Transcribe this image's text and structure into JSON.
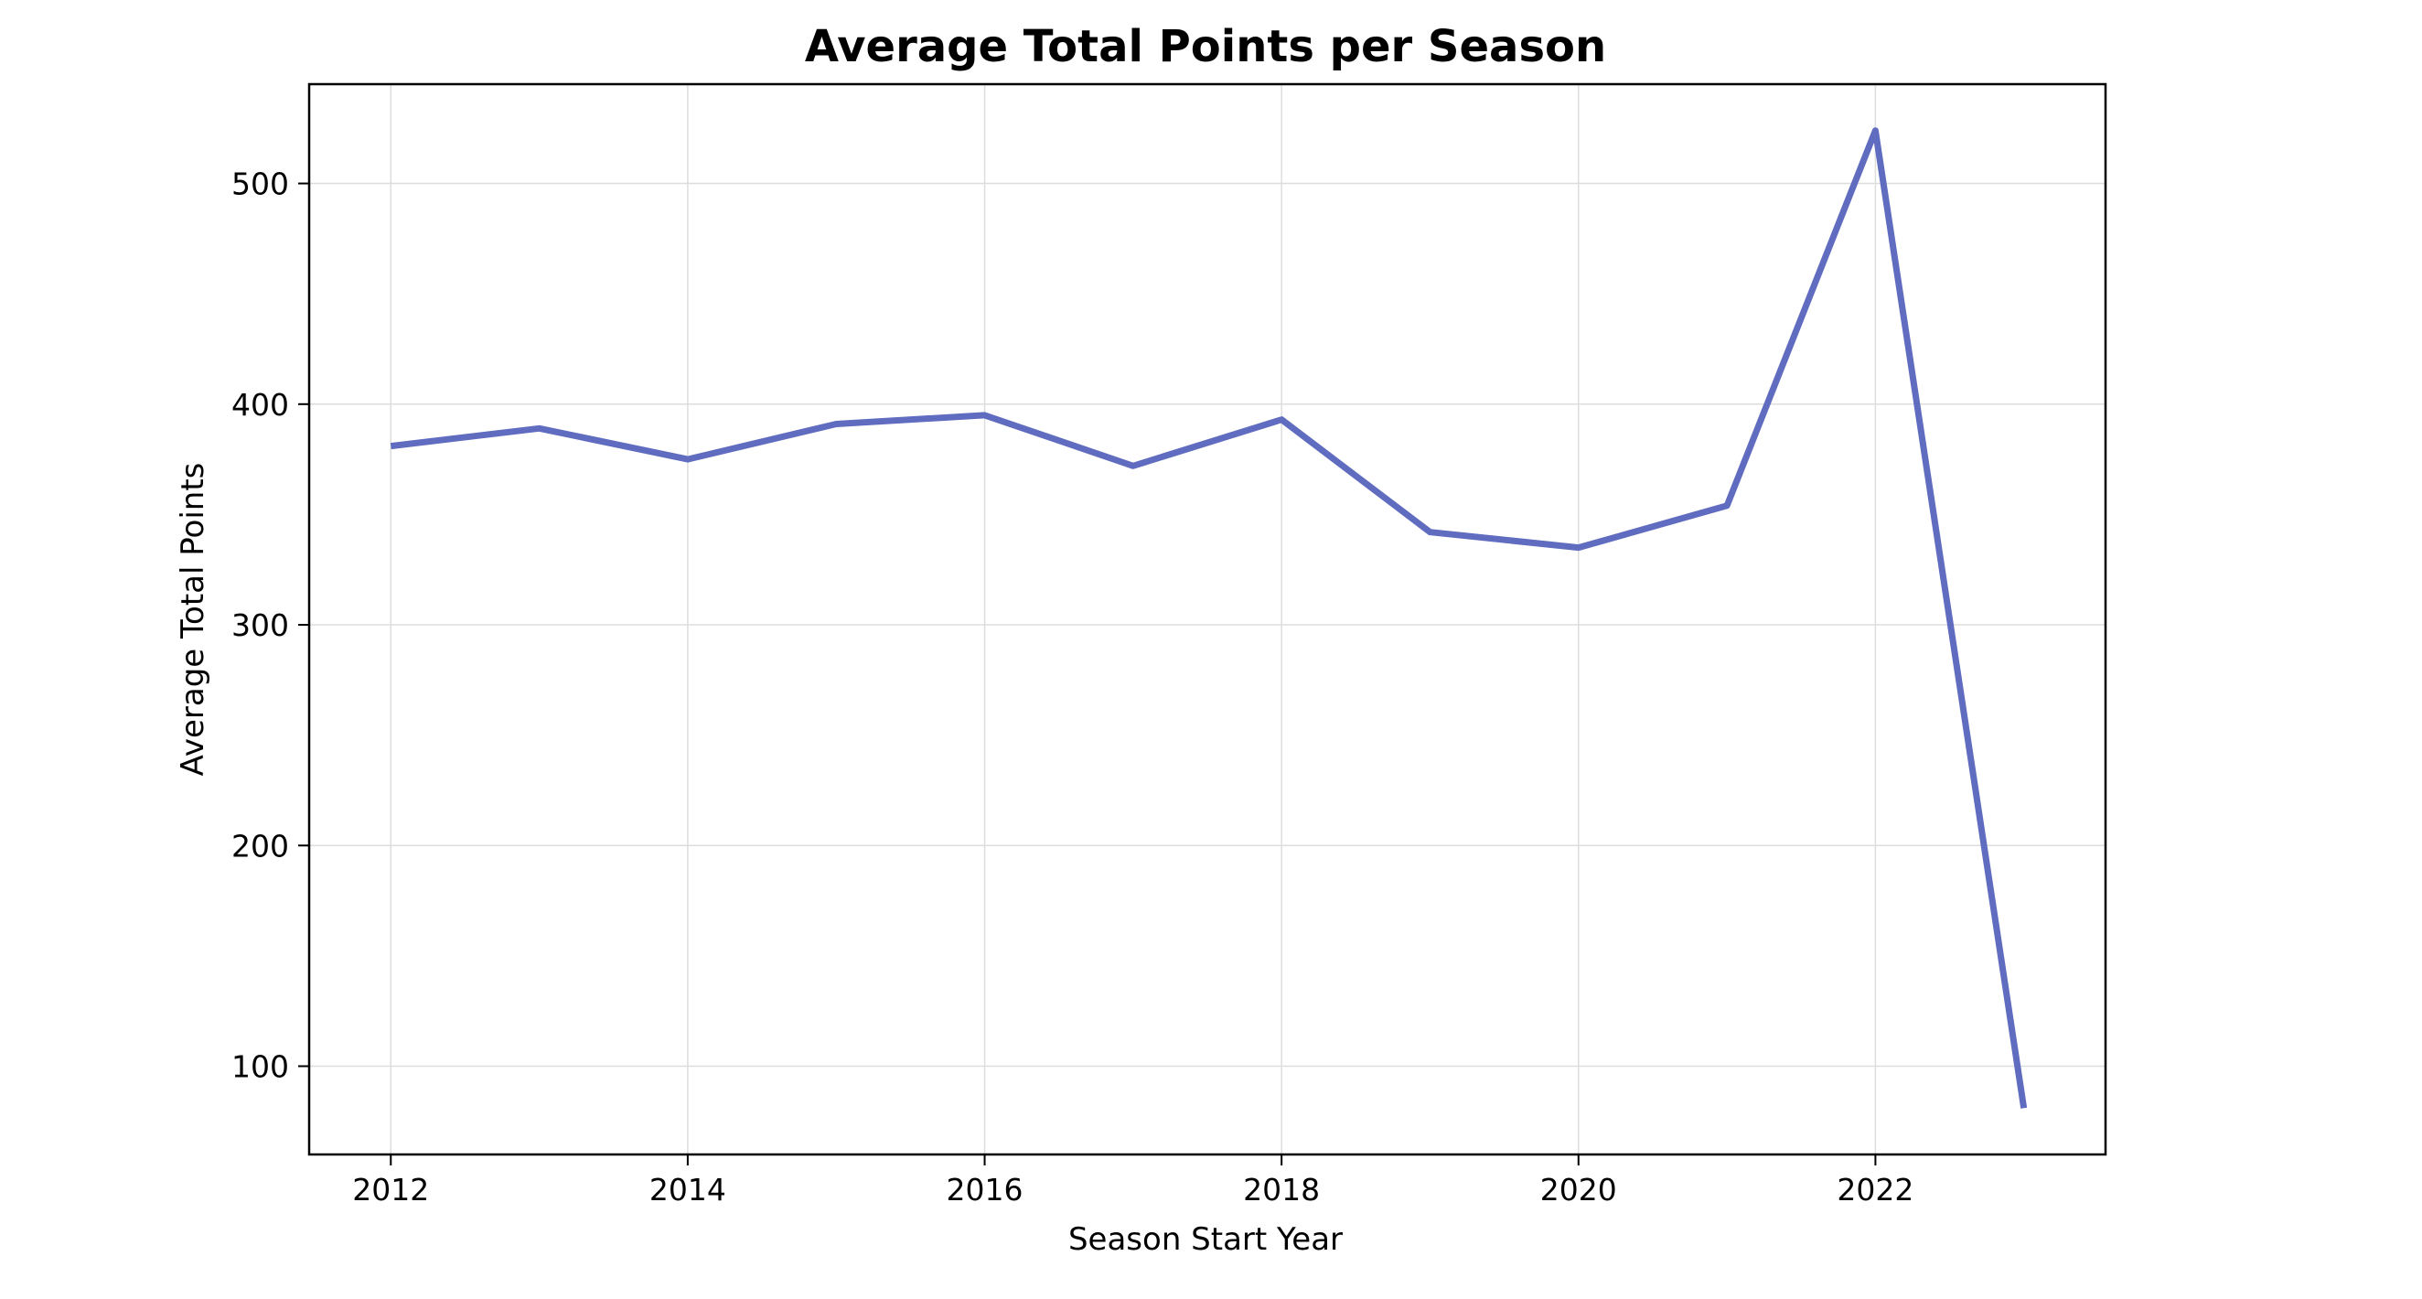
{
  "chart_data": {
    "type": "line",
    "title": "Average Total Points per Season",
    "xlabel": "Season Start Year",
    "ylabel": "Average Total Points",
    "xlim": [
      2011.45,
      2023.55
    ],
    "ylim": [
      60,
      545
    ],
    "x_ticks": [
      2012,
      2014,
      2016,
      2018,
      2020,
      2022
    ],
    "y_ticks": [
      100,
      200,
      300,
      400,
      500
    ],
    "grid": true,
    "legend": "none",
    "series": [
      {
        "color": "#5f6cbf",
        "x": [
          2012,
          2013,
          2014,
          2015,
          2016,
          2017,
          2018,
          2019,
          2020,
          2021,
          2022,
          2023
        ],
        "y": [
          381,
          389,
          375,
          391,
          395,
          372,
          393,
          342,
          335,
          354,
          524,
          81
        ]
      }
    ]
  },
  "colors": {
    "line": "#5f6cbf",
    "grid": "#dddddd",
    "axes": "#000000",
    "background": "#ffffff"
  }
}
